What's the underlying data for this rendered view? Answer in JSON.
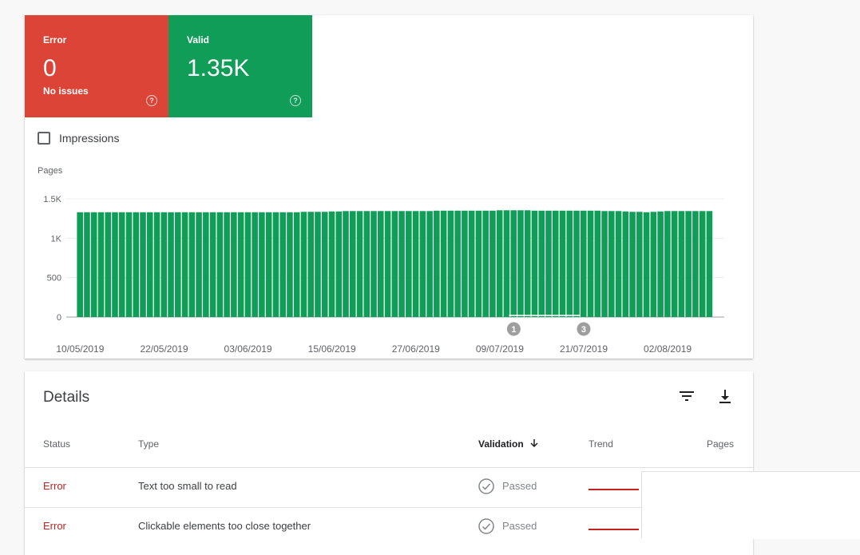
{
  "tiles": {
    "error": {
      "label": "Error",
      "count": "0",
      "sub": "No issues",
      "help": "?"
    },
    "valid": {
      "label": "Valid",
      "count": "1.35K",
      "help": "?"
    }
  },
  "impressions": {
    "label": "Impressions",
    "checked": false
  },
  "colors": {
    "error": "#db4437",
    "valid": "#0f9d58",
    "error_text": "#c5221f"
  },
  "chart_data": {
    "type": "bar",
    "ylabel": "Pages",
    "ylim": [
      0,
      1500
    ],
    "yticks": [
      0,
      500,
      1000,
      1500
    ],
    "ytick_labels": [
      "0",
      "500",
      "1K",
      "1.5K"
    ],
    "x_tick_labels": [
      "10/05/2019",
      "22/05/2019",
      "03/06/2019",
      "15/06/2019",
      "27/06/2019",
      "09/07/2019",
      "21/07/2019",
      "02/08/2019"
    ],
    "x_tick_positions": [
      0,
      12,
      24,
      36,
      48,
      60,
      72,
      84
    ],
    "grid": true,
    "series": [
      {
        "color": "#0f9d58",
        "values": [
          1330,
          1330,
          1330,
          1330,
          1330,
          1330,
          1330,
          1330,
          1330,
          1330,
          1330,
          1330,
          1330,
          1330,
          1330,
          1330,
          1330,
          1330,
          1330,
          1330,
          1330,
          1330,
          1330,
          1330,
          1330,
          1330,
          1330,
          1330,
          1330,
          1330,
          1330,
          1330,
          1335,
          1335,
          1335,
          1335,
          1340,
          1340,
          1345,
          1345,
          1345,
          1345,
          1345,
          1345,
          1345,
          1345,
          1345,
          1345,
          1345,
          1345,
          1345,
          1350,
          1350,
          1350,
          1350,
          1350,
          1350,
          1350,
          1350,
          1350,
          1355,
          1355,
          1355,
          1355,
          1355,
          1350,
          1350,
          1350,
          1350,
          1350,
          1350,
          1350,
          1350,
          1350,
          1350,
          1345,
          1345,
          1345,
          1340,
          1335,
          1335,
          1330,
          1335,
          1340,
          1345,
          1345,
          1345,
          1345,
          1345,
          1345,
          1345
        ]
      }
    ],
    "annotations": [
      {
        "label": "1",
        "x_index": 62
      },
      {
        "label": "3",
        "x_index": 72
      }
    ]
  },
  "details": {
    "title": "Details",
    "columns": {
      "status": "Status",
      "type": "Type",
      "validation": "Validation",
      "trend": "Trend",
      "pages": "Pages"
    },
    "rows": [
      {
        "status": "Error",
        "type": "Text too small to read",
        "validation": "Passed"
      },
      {
        "status": "Error",
        "type": "Clickable elements too close together",
        "validation": "Passed"
      }
    ]
  }
}
